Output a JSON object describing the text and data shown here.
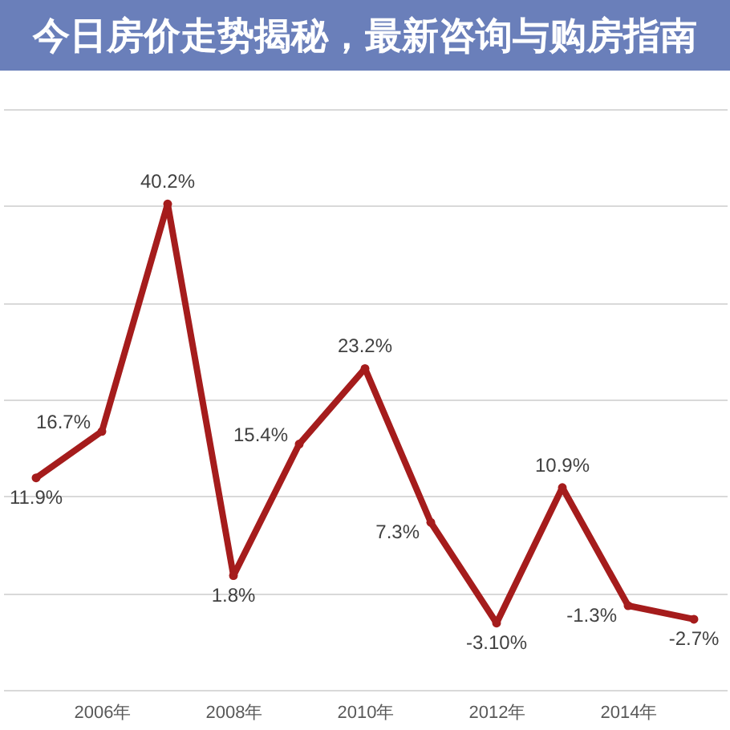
{
  "chart_data": {
    "type": "line",
    "title": "今日房价走势揭秘，最新咨询与购房指南",
    "x": [
      2005,
      2006,
      2007,
      2008,
      2009,
      2010,
      2011,
      2012,
      2013,
      2014,
      2015
    ],
    "values": [
      11.9,
      16.7,
      40.2,
      1.8,
      15.4,
      23.2,
      7.3,
      -3.1,
      10.9,
      -1.3,
      -2.7
    ],
    "value_labels": [
      "11.9%",
      "16.7%",
      "40.2%",
      "1.8%",
      "15.4%",
      "23.2%",
      "7.3%",
      "-3.10%",
      "10.9%",
      "-1.3%",
      "-2.7%"
    ],
    "color": "#a51c1c",
    "xlim": [
      2004.5,
      2015.5
    ],
    "xticks": [
      {
        "value": 2006,
        "label": "2006年"
      },
      {
        "value": 2008,
        "label": "2008年"
      },
      {
        "value": 2010,
        "label": "2010年"
      },
      {
        "value": 2012,
        "label": "2012年"
      },
      {
        "value": 2014,
        "label": "2014年"
      }
    ],
    "ylim": [
      -10,
      50
    ],
    "yticks": [
      {
        "value": -10,
        "label": null
      },
      {
        "value": 0,
        "label": null
      },
      {
        "value": 10,
        "label": null
      },
      {
        "value": 20,
        "label": null
      },
      {
        "value": 30,
        "label": null
      },
      {
        "value": 40,
        "label": null
      },
      {
        "value": 50,
        "label": null
      }
    ],
    "tick_labels": "x",
    "grid": "y",
    "marker": "circle",
    "line_style": "solid"
  }
}
